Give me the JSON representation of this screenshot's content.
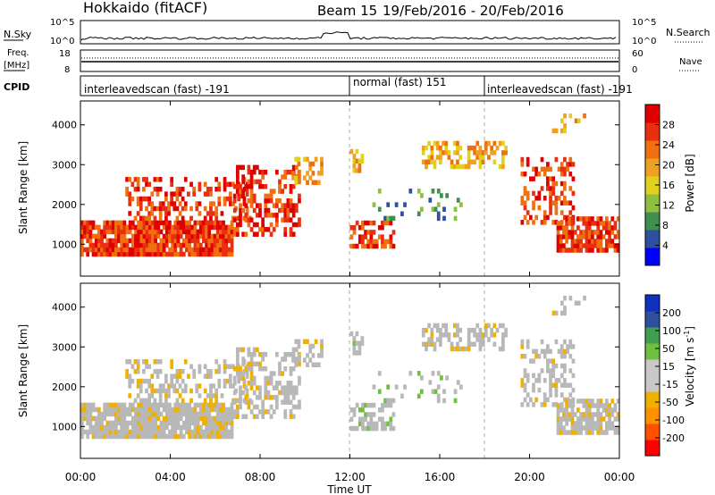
{
  "header": {
    "station": "Hokkaido (fitACF)",
    "beam": "Beam 15",
    "date_range": "19/Feb/2016 - 20/Feb/2016"
  },
  "colors": {
    "power": [
      "#0000ff",
      "#2f4f9f",
      "#3f8f4f",
      "#8fbf3f",
      "#e0d020",
      "#f0a020",
      "#f07010",
      "#e83010",
      "#e00000"
    ],
    "velocity": [
      "#ff0000",
      "#ff5000",
      "#ff9000",
      "#f0b000",
      "#c8c8c8",
      "#c8c8c8",
      "#70c040",
      "#3f9f50",
      "#2f4f9f",
      "#1030c0"
    ],
    "ground_scatter": "#b8b8b8"
  },
  "chart_data": [
    {
      "type": "line",
      "name": "noise-panel",
      "left_label": "N.Sky",
      "right_label": "N.Search",
      "ticks": [
        "10^5",
        "10^0"
      ],
      "right_ticks": [
        "10^5",
        "10^0"
      ]
    },
    {
      "type": "line",
      "name": "freq-nave-panel",
      "left_label": "Freq.",
      "left_unit": "[MHz]",
      "right_label": "Nave",
      "left_ticks": [
        "18",
        "8"
      ],
      "right_ticks": [
        "60",
        "0"
      ]
    },
    {
      "type": "table",
      "name": "cpid-panel",
      "label": "CPID",
      "segments": [
        {
          "start_hour": 0,
          "end_hour": 12,
          "text": "interleavedscan (fast) -191"
        },
        {
          "start_hour": 12,
          "end_hour": 18,
          "text": "normal (fast) 151"
        },
        {
          "start_hour": 18,
          "end_hour": 24,
          "text": "interleavedscan (fast) -191"
        }
      ]
    },
    {
      "type": "heatmap",
      "name": "power",
      "ylabel": "Slant Range [km]",
      "ylim": [
        200,
        4600
      ],
      "yticks": [
        "1000",
        "2000",
        "3000",
        "4000"
      ],
      "colorbar_label": "Power [dB]",
      "colorbar_ticks": [
        "28",
        "24",
        "20",
        "16",
        "12",
        "8",
        "4"
      ],
      "clim": [
        0,
        32
      ]
    },
    {
      "type": "heatmap",
      "name": "velocity",
      "ylabel": "Slant Range [km]",
      "ylim": [
        200,
        4600
      ],
      "yticks": [
        "1000",
        "2000",
        "3000",
        "4000"
      ],
      "colorbar_label": "Velocity [m s",
      "colorbar_label_sup": "-1",
      "colorbar_label_end": "]",
      "colorbar_ticks": [
        "200",
        "100",
        "50",
        "15",
        "-15",
        "-50",
        "-100",
        "-200"
      ]
    }
  ],
  "xaxis": {
    "label": "Time UT",
    "ticks": [
      "00:00",
      "04:00",
      "08:00",
      "12:00",
      "16:00",
      "20:00",
      "00:00"
    ],
    "xlim_hours": [
      0,
      24
    ]
  }
}
